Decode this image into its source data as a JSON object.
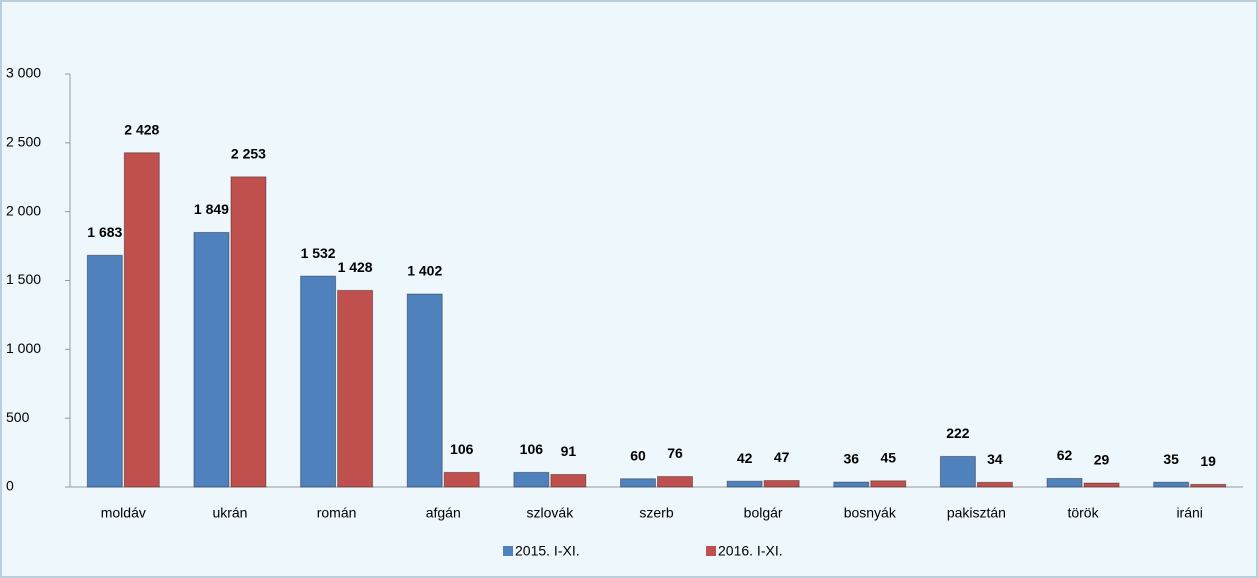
{
  "chart_data": {
    "type": "bar",
    "categories": [
      "moldáv",
      "ukrán",
      "román",
      "afgán",
      "szlovák",
      "szerb",
      "bolgár",
      "bosnyák",
      "pakisztán",
      "török",
      "iráni"
    ],
    "series": [
      {
        "name": "2015. I-XI.",
        "color": "#4f81bd",
        "values": [
          1683,
          1849,
          1532,
          1402,
          106,
          60,
          42,
          36,
          222,
          62,
          35
        ],
        "value_labels": [
          "1 683",
          "1 849",
          "1 532",
          "1 402",
          "106",
          "60",
          "42",
          "36",
          "222",
          "62",
          "35"
        ]
      },
      {
        "name": "2016. I-XI.",
        "color": "#c0504d",
        "values": [
          2428,
          2253,
          1428,
          106,
          91,
          76,
          47,
          45,
          34,
          29,
          19
        ],
        "value_labels": [
          "2 428",
          "2 253",
          "1 428",
          "106",
          "91",
          "76",
          "47",
          "45",
          "34",
          "29",
          "19"
        ]
      }
    ],
    "ylim": [
      0,
      3000
    ],
    "yticks": [
      0,
      500,
      {
        "value": 1000,
        "label": "1 000"
      },
      {
        "value": 1500,
        "label": "1 500"
      },
      {
        "value": 2000,
        "label": "2 000"
      },
      {
        "value": 2500,
        "label": "2 500"
      },
      {
        "value": 3000,
        "label": "3 000"
      }
    ],
    "legend": "bottom"
  }
}
